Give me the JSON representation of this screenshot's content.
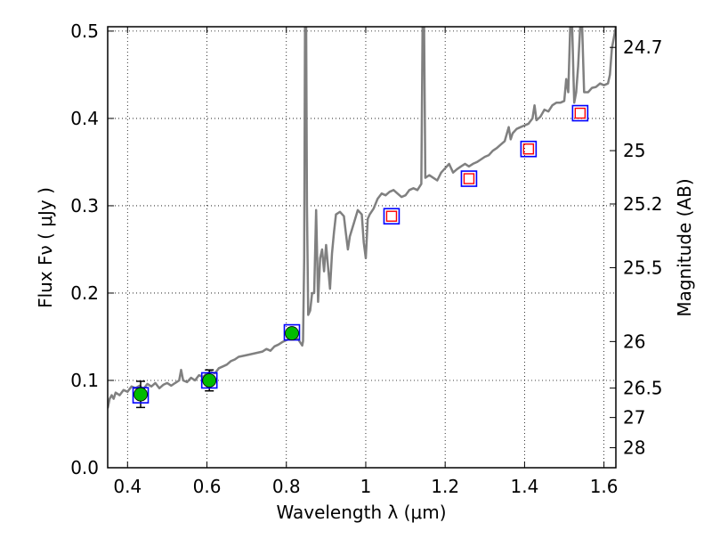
{
  "chart_data": {
    "type": "scatter",
    "xlabel": "Wavelength  λ (μm)",
    "ylabel": "Flux  Fν  ( μJy )",
    "y2label": "Magnitude (AB)",
    "xlim": [
      0.35,
      1.63
    ],
    "ylim": [
      0.0,
      0.505
    ],
    "xticks": [
      {
        "value": 0.4,
        "label": "0.4"
      },
      {
        "value": 0.6,
        "label": "0.6"
      },
      {
        "value": 0.8,
        "label": "0.8"
      },
      {
        "value": 1.0,
        "label": "1"
      },
      {
        "value": 1.2,
        "label": "1.2"
      },
      {
        "value": 1.4,
        "label": "1.4"
      },
      {
        "value": 1.6,
        "label": "1.6"
      }
    ],
    "yticks": [
      {
        "value": 0.0,
        "label": "0.0"
      },
      {
        "value": 0.1,
        "label": "0.1"
      },
      {
        "value": 0.2,
        "label": "0.2"
      },
      {
        "value": 0.3,
        "label": "0.3"
      },
      {
        "value": 0.4,
        "label": "0.4"
      },
      {
        "value": 0.5,
        "label": "0.5"
      }
    ],
    "y2ticks": [
      {
        "flux": 0.4813,
        "label": "24.7"
      },
      {
        "flux": 0.3631,
        "label": "25"
      },
      {
        "flux": 0.302,
        "label": "25.2"
      },
      {
        "flux": 0.2291,
        "label": "25.5"
      },
      {
        "flux": 0.1445,
        "label": "26"
      },
      {
        "flux": 0.0912,
        "label": "26.5"
      },
      {
        "flux": 0.0575,
        "label": "27"
      },
      {
        "flux": 0.0229,
        "label": "28"
      }
    ],
    "grid": true,
    "colors": {
      "spectrum": "#808080",
      "model_box": "#0000ff",
      "observed_fill": "#00bb00",
      "upper_box": "#ff0000",
      "errorbar": "#000000"
    },
    "model_spectrum": [
      [
        0.35,
        0.068
      ],
      [
        0.355,
        0.079
      ],
      [
        0.36,
        0.083
      ],
      [
        0.365,
        0.079
      ],
      [
        0.37,
        0.086
      ],
      [
        0.38,
        0.083
      ],
      [
        0.39,
        0.089
      ],
      [
        0.4,
        0.087
      ],
      [
        0.41,
        0.093
      ],
      [
        0.42,
        0.091
      ],
      [
        0.43,
        0.094
      ],
      [
        0.44,
        0.09
      ],
      [
        0.45,
        0.096
      ],
      [
        0.46,
        0.093
      ],
      [
        0.47,
        0.097
      ],
      [
        0.48,
        0.091
      ],
      [
        0.49,
        0.095
      ],
      [
        0.5,
        0.097
      ],
      [
        0.51,
        0.094
      ],
      [
        0.52,
        0.097
      ],
      [
        0.53,
        0.1
      ],
      [
        0.535,
        0.112
      ],
      [
        0.54,
        0.1
      ],
      [
        0.55,
        0.098
      ],
      [
        0.56,
        0.103
      ],
      [
        0.57,
        0.1
      ],
      [
        0.58,
        0.106
      ],
      [
        0.59,
        0.104
      ],
      [
        0.6,
        0.108
      ],
      [
        0.61,
        0.11
      ],
      [
        0.62,
        0.108
      ],
      [
        0.63,
        0.114
      ],
      [
        0.64,
        0.116
      ],
      [
        0.65,
        0.118
      ],
      [
        0.66,
        0.122
      ],
      [
        0.67,
        0.124
      ],
      [
        0.68,
        0.127
      ],
      [
        0.7,
        0.129
      ],
      [
        0.72,
        0.131
      ],
      [
        0.74,
        0.133
      ],
      [
        0.75,
        0.136
      ],
      [
        0.76,
        0.134
      ],
      [
        0.77,
        0.139
      ],
      [
        0.78,
        0.141
      ],
      [
        0.79,
        0.144
      ],
      [
        0.8,
        0.146
      ],
      [
        0.81,
        0.148
      ],
      [
        0.82,
        0.15
      ],
      [
        0.83,
        0.147
      ],
      [
        0.84,
        0.14
      ],
      [
        0.842,
        0.145
      ],
      [
        0.845,
        0.24
      ],
      [
        0.847,
        0.505
      ],
      [
        0.85,
        0.505
      ],
      [
        0.852,
        0.3
      ],
      [
        0.855,
        0.175
      ],
      [
        0.86,
        0.18
      ],
      [
        0.865,
        0.2
      ],
      [
        0.87,
        0.2
      ],
      [
        0.875,
        0.295
      ],
      [
        0.878,
        0.235
      ],
      [
        0.88,
        0.19
      ],
      [
        0.885,
        0.24
      ],
      [
        0.89,
        0.25
      ],
      [
        0.895,
        0.225
      ],
      [
        0.9,
        0.255
      ],
      [
        0.905,
        0.23
      ],
      [
        0.91,
        0.205
      ],
      [
        0.915,
        0.245
      ],
      [
        0.92,
        0.27
      ],
      [
        0.925,
        0.29
      ],
      [
        0.935,
        0.293
      ],
      [
        0.945,
        0.288
      ],
      [
        0.95,
        0.268
      ],
      [
        0.955,
        0.25
      ],
      [
        0.96,
        0.265
      ],
      [
        0.97,
        0.28
      ],
      [
        0.98,
        0.295
      ],
      [
        0.99,
        0.29
      ],
      [
        0.995,
        0.258
      ],
      [
        1.0,
        0.24
      ],
      [
        1.005,
        0.285
      ],
      [
        1.01,
        0.29
      ],
      [
        1.02,
        0.297
      ],
      [
        1.03,
        0.308
      ],
      [
        1.04,
        0.314
      ],
      [
        1.05,
        0.312
      ],
      [
        1.06,
        0.316
      ],
      [
        1.07,
        0.318
      ],
      [
        1.08,
        0.314
      ],
      [
        1.09,
        0.31
      ],
      [
        1.1,
        0.312
      ],
      [
        1.11,
        0.318
      ],
      [
        1.12,
        0.32
      ],
      [
        1.13,
        0.318
      ],
      [
        1.14,
        0.325
      ],
      [
        1.143,
        0.505
      ],
      [
        1.147,
        0.505
      ],
      [
        1.15,
        0.332
      ],
      [
        1.16,
        0.335
      ],
      [
        1.17,
        0.332
      ],
      [
        1.18,
        0.329
      ],
      [
        1.19,
        0.338
      ],
      [
        1.2,
        0.343
      ],
      [
        1.21,
        0.348
      ],
      [
        1.22,
        0.338
      ],
      [
        1.23,
        0.342
      ],
      [
        1.24,
        0.345
      ],
      [
        1.25,
        0.348
      ],
      [
        1.26,
        0.345
      ],
      [
        1.27,
        0.348
      ],
      [
        1.28,
        0.35
      ],
      [
        1.29,
        0.353
      ],
      [
        1.3,
        0.356
      ],
      [
        1.31,
        0.358
      ],
      [
        1.32,
        0.363
      ],
      [
        1.33,
        0.366
      ],
      [
        1.34,
        0.37
      ],
      [
        1.35,
        0.374
      ],
      [
        1.36,
        0.39
      ],
      [
        1.365,
        0.376
      ],
      [
        1.37,
        0.383
      ],
      [
        1.38,
        0.388
      ],
      [
        1.39,
        0.39
      ],
      [
        1.4,
        0.392
      ],
      [
        1.41,
        0.394
      ],
      [
        1.42,
        0.4
      ],
      [
        1.425,
        0.415
      ],
      [
        1.43,
        0.398
      ],
      [
        1.44,
        0.402
      ],
      [
        1.45,
        0.41
      ],
      [
        1.46,
        0.408
      ],
      [
        1.47,
        0.415
      ],
      [
        1.48,
        0.418
      ],
      [
        1.49,
        0.418
      ],
      [
        1.5,
        0.42
      ],
      [
        1.505,
        0.445
      ],
      [
        1.51,
        0.43
      ],
      [
        1.515,
        0.505
      ],
      [
        1.52,
        0.505
      ],
      [
        1.523,
        0.45
      ],
      [
        1.525,
        0.418
      ],
      [
        1.53,
        0.43
      ],
      [
        1.535,
        0.46
      ],
      [
        1.54,
        0.505
      ],
      [
        1.545,
        0.505
      ],
      [
        1.55,
        0.43
      ],
      [
        1.56,
        0.43
      ],
      [
        1.57,
        0.435
      ],
      [
        1.58,
        0.436
      ],
      [
        1.59,
        0.44
      ],
      [
        1.6,
        0.438
      ],
      [
        1.61,
        0.44
      ],
      [
        1.615,
        0.45
      ],
      [
        1.62,
        0.48
      ],
      [
        1.63,
        0.505
      ]
    ],
    "model_boxes": [
      {
        "x": 0.433,
        "y": 0.083
      },
      {
        "x": 0.606,
        "y": 0.1
      },
      {
        "x": 0.814,
        "y": 0.155
      },
      {
        "x": 1.065,
        "y": 0.288
      },
      {
        "x": 1.26,
        "y": 0.331
      },
      {
        "x": 1.41,
        "y": 0.365
      },
      {
        "x": 1.54,
        "y": 0.406
      }
    ],
    "observed_points": [
      {
        "x": 0.433,
        "y": 0.084,
        "yerr": 0.015
      },
      {
        "x": 0.606,
        "y": 0.1,
        "yerr": 0.012
      },
      {
        "x": 0.814,
        "y": 0.154,
        "yerr": 0.004
      }
    ],
    "upper_limit_markers": [
      {
        "x": 1.065,
        "y": 0.288
      },
      {
        "x": 1.26,
        "y": 0.331
      },
      {
        "x": 1.41,
        "y": 0.365
      },
      {
        "x": 1.54,
        "y": 0.406
      }
    ]
  }
}
